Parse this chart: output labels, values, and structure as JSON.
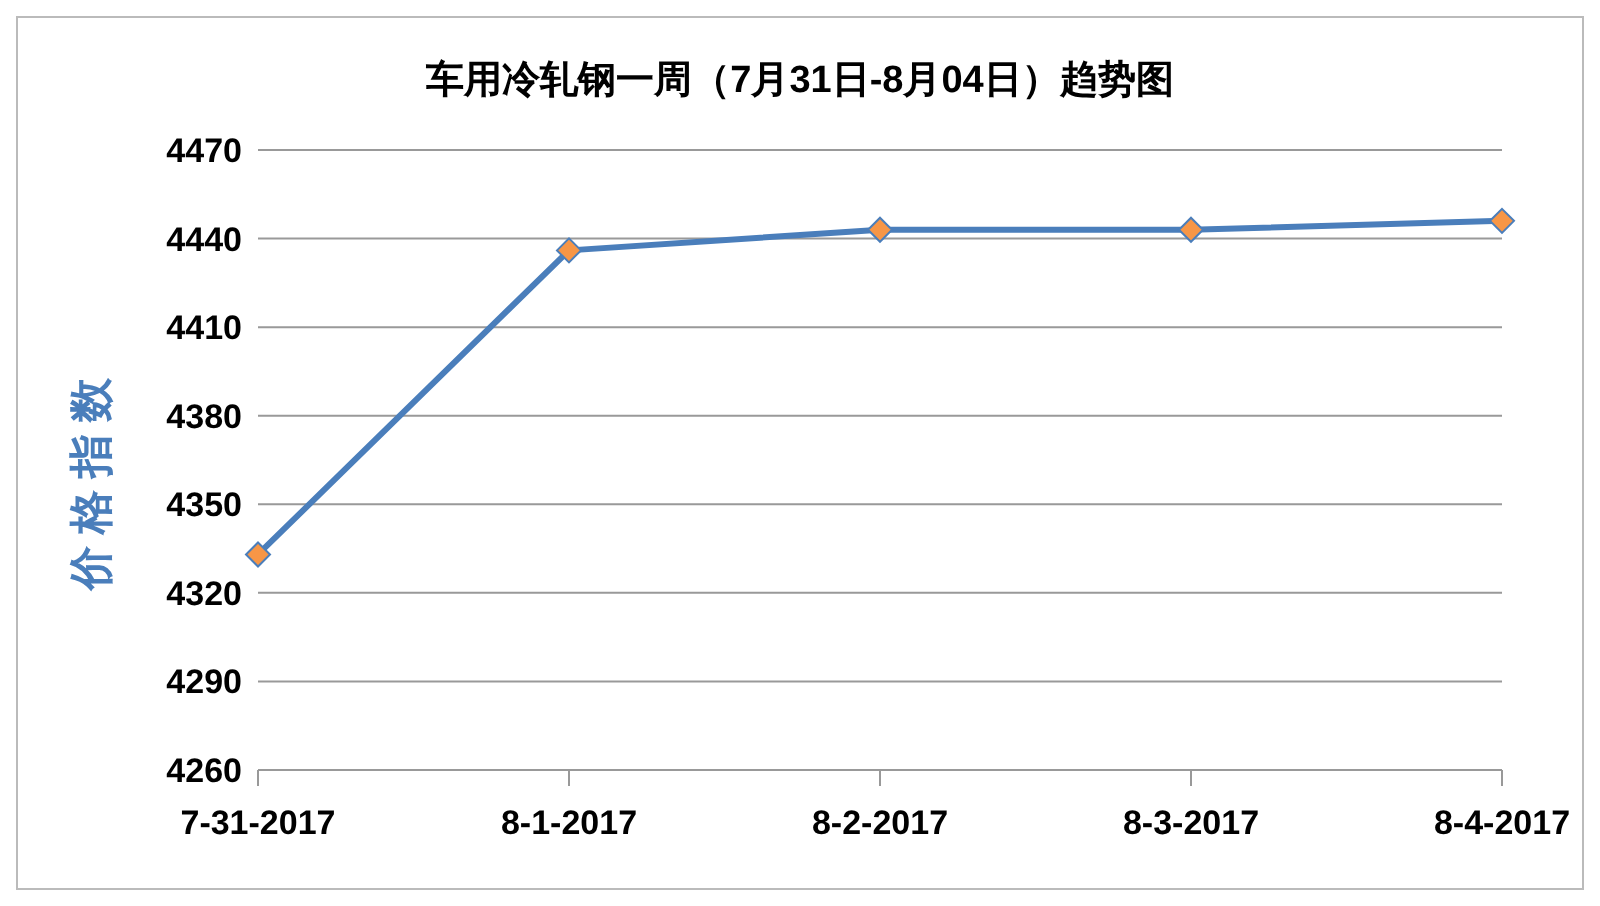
{
  "chart_data": {
    "type": "line",
    "title": "车用冷轧钢一周（7月31日-8月04日）趋势图",
    "ylabel": "价格指数",
    "categories": [
      "7-31-2017",
      "8-1-2017",
      "8-2-2017",
      "8-3-2017",
      "8-4-2017"
    ],
    "series": [
      {
        "color": "#4a7ebb",
        "values": [
          4333,
          4436,
          4443,
          4443,
          4446
        ]
      }
    ],
    "ylim": [
      4260,
      4470
    ],
    "yticks": [
      4260,
      4290,
      4320,
      4350,
      4380,
      4410,
      4440,
      4470
    ],
    "grid": "y",
    "marker": "diamond",
    "line_style": "solid",
    "legend": false
  }
}
